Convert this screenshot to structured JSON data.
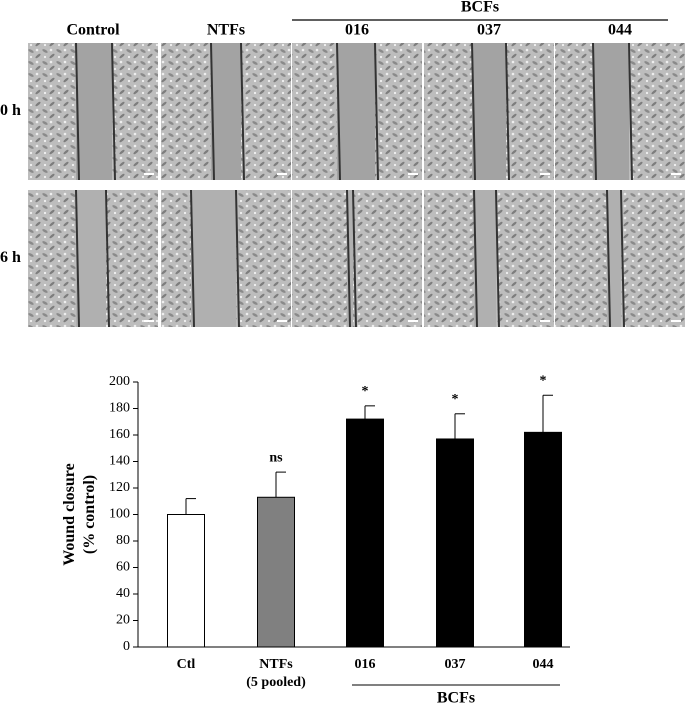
{
  "panels": {
    "columns": [
      "Control",
      "NTFs",
      "016",
      "037",
      "044"
    ],
    "group": "BCFs",
    "rows": [
      "0 h",
      "6 h"
    ]
  },
  "chart_data": {
    "type": "bar",
    "ylabel": [
      "Wound closure",
      "(% control)"
    ],
    "categories": [
      "Ctl",
      [
        "NTFs",
        "(5 pooled)"
      ],
      "016",
      "037",
      "044"
    ],
    "values": [
      100,
      113,
      172,
      157,
      162
    ],
    "errors": [
      12,
      19,
      10,
      19,
      28
    ],
    "colors": [
      "#ffffff",
      "#808080",
      "#000000",
      "#000000",
      "#000000"
    ],
    "significance": [
      null,
      "ns",
      "*",
      "*",
      "*"
    ],
    "group_label": "BCFs",
    "ylim": [
      0,
      200
    ],
    "yticks": [
      0,
      20,
      40,
      60,
      80,
      100,
      120,
      140,
      160,
      180,
      200
    ],
    "grid": false
  }
}
